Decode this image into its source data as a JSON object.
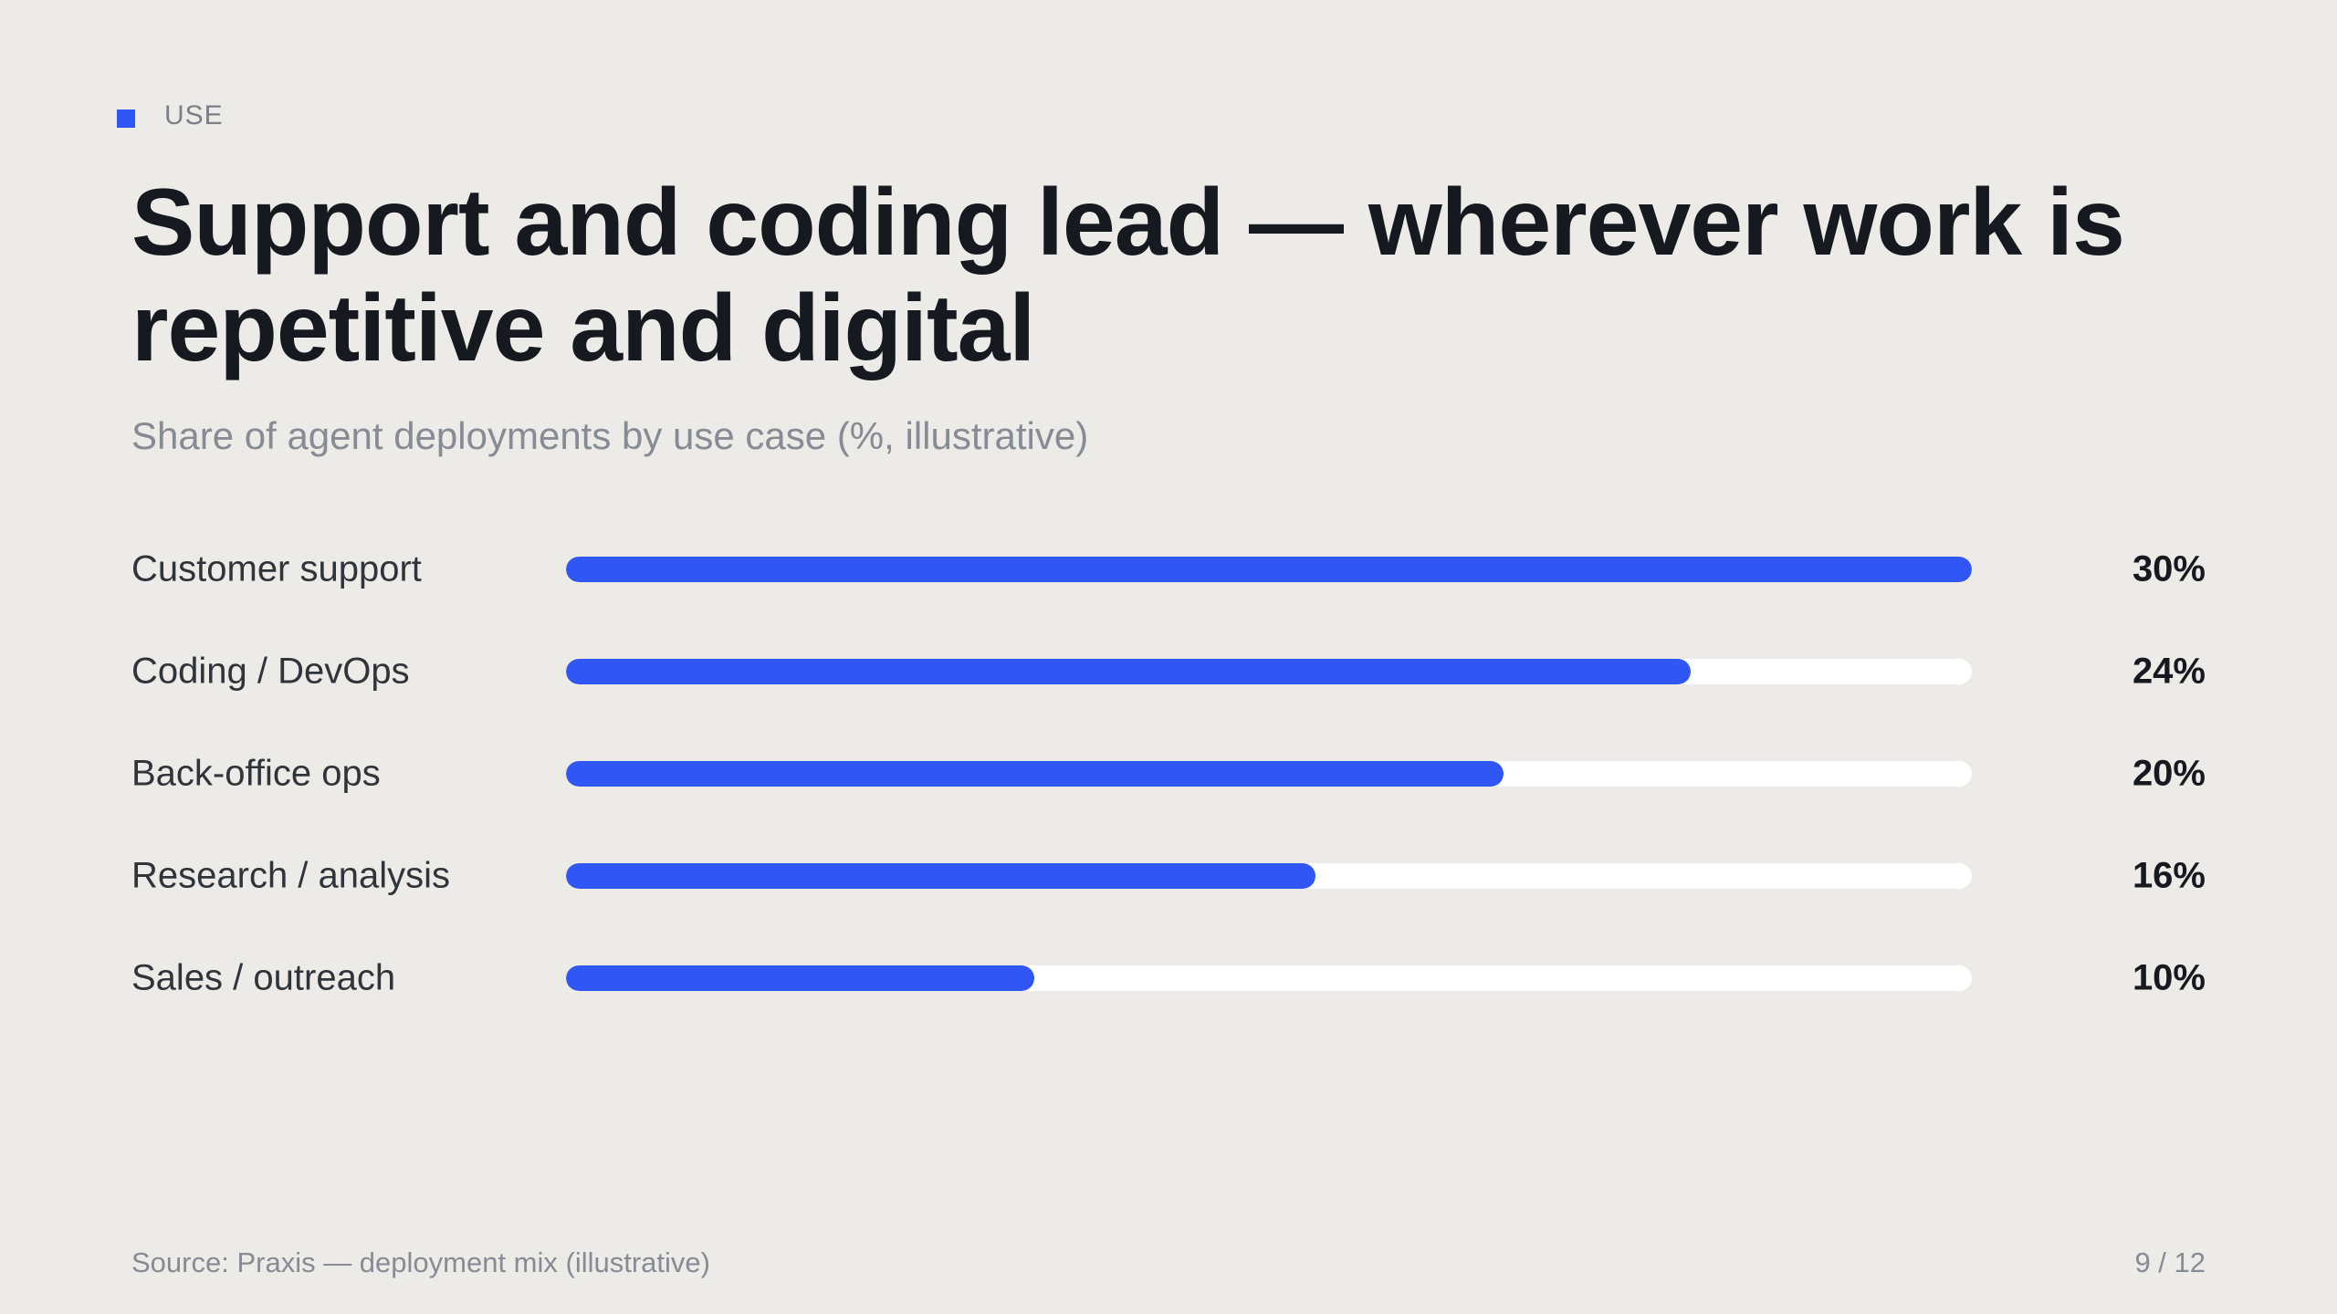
{
  "eyebrow": {
    "label": "USE",
    "accent_color": "#3057f5"
  },
  "title": "Support and coding lead — wherever work is repetitive and digital",
  "subtitle": "Share of agent deployments by use case (%, illustrative)",
  "chart_data": {
    "type": "bar",
    "orientation": "horizontal",
    "categories": [
      "Customer support",
      "Coding / DevOps",
      "Back-office ops",
      "Research / analysis",
      "Sales / outreach"
    ],
    "values": [
      30,
      24,
      20,
      16,
      10
    ],
    "value_labels": [
      "30%",
      "24%",
      "20%",
      "16%",
      "10%"
    ],
    "xlim": [
      0,
      30
    ],
    "grid": false,
    "bar_color": "#3057f5",
    "track_color": "#ffffff"
  },
  "footer": {
    "source": "Source: Praxis — deployment mix (illustrative)",
    "page": "9 / 12"
  }
}
